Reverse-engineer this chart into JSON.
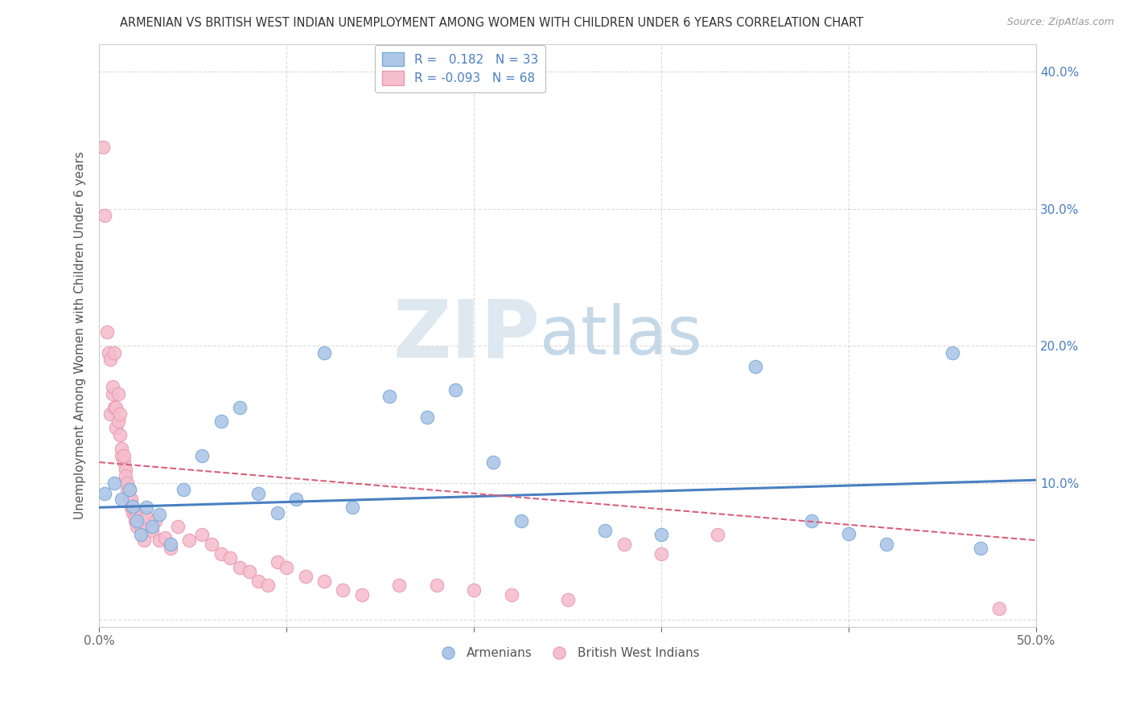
{
  "title": "ARMENIAN VS BRITISH WEST INDIAN UNEMPLOYMENT AMONG WOMEN WITH CHILDREN UNDER 6 YEARS CORRELATION CHART",
  "source": "Source: ZipAtlas.com",
  "ylabel": "Unemployment Among Women with Children Under 6 years",
  "xlim": [
    0.0,
    0.5
  ],
  "ylim": [
    -0.005,
    0.42
  ],
  "armenian_R": 0.182,
  "armenian_N": 33,
  "bwi_R": -0.093,
  "bwi_N": 68,
  "armenian_color": "#adc6e8",
  "armenian_edge": "#7aaad4",
  "bwi_color": "#f5bece",
  "bwi_edge": "#e899b0",
  "trend_armenian_color": "#4a7fc1",
  "trend_bwi_color": "#d9607a",
  "background_color": "#ffffff",
  "grid_color": "#cccccc",
  "legend_armenians": "Armenians",
  "legend_bwi": "British West Indians",
  "arm_x": [
    0.003,
    0.008,
    0.012,
    0.016,
    0.018,
    0.02,
    0.022,
    0.025,
    0.028,
    0.032,
    0.038,
    0.045,
    0.055,
    0.065,
    0.075,
    0.085,
    0.095,
    0.105,
    0.12,
    0.135,
    0.155,
    0.175,
    0.19,
    0.21,
    0.225,
    0.27,
    0.3,
    0.35,
    0.38,
    0.4,
    0.42,
    0.455,
    0.47
  ],
  "arm_y": [
    0.092,
    0.1,
    0.088,
    0.095,
    0.083,
    0.072,
    0.062,
    0.082,
    0.068,
    0.077,
    0.055,
    0.095,
    0.12,
    0.145,
    0.155,
    0.092,
    0.078,
    0.088,
    0.195,
    0.082,
    0.163,
    0.148,
    0.168,
    0.115,
    0.072,
    0.065,
    0.062,
    0.185,
    0.072,
    0.063,
    0.055,
    0.195,
    0.052
  ],
  "bwi_x": [
    0.002,
    0.003,
    0.004,
    0.005,
    0.006,
    0.006,
    0.007,
    0.007,
    0.008,
    0.008,
    0.009,
    0.009,
    0.01,
    0.01,
    0.011,
    0.011,
    0.012,
    0.012,
    0.013,
    0.013,
    0.014,
    0.014,
    0.015,
    0.015,
    0.016,
    0.016,
    0.017,
    0.017,
    0.018,
    0.018,
    0.019,
    0.019,
    0.02,
    0.02,
    0.022,
    0.022,
    0.024,
    0.025,
    0.028,
    0.03,
    0.032,
    0.035,
    0.038,
    0.042,
    0.048,
    0.055,
    0.06,
    0.065,
    0.07,
    0.075,
    0.08,
    0.085,
    0.09,
    0.095,
    0.1,
    0.11,
    0.12,
    0.13,
    0.14,
    0.16,
    0.18,
    0.2,
    0.22,
    0.25,
    0.28,
    0.3,
    0.33,
    0.48
  ],
  "bwi_y": [
    0.345,
    0.295,
    0.21,
    0.195,
    0.15,
    0.19,
    0.165,
    0.17,
    0.155,
    0.195,
    0.14,
    0.155,
    0.145,
    0.165,
    0.135,
    0.15,
    0.12,
    0.125,
    0.115,
    0.12,
    0.11,
    0.105,
    0.095,
    0.1,
    0.088,
    0.095,
    0.082,
    0.088,
    0.078,
    0.082,
    0.072,
    0.076,
    0.068,
    0.078,
    0.075,
    0.068,
    0.058,
    0.075,
    0.065,
    0.072,
    0.058,
    0.06,
    0.052,
    0.068,
    0.058,
    0.062,
    0.055,
    0.048,
    0.045,
    0.038,
    0.035,
    0.028,
    0.025,
    0.042,
    0.038,
    0.032,
    0.028,
    0.022,
    0.018,
    0.025,
    0.025,
    0.022,
    0.018,
    0.015,
    0.055,
    0.048,
    0.062,
    0.008
  ],
  "arm_trend_x0": 0.0,
  "arm_trend_y0": 0.082,
  "arm_trend_x1": 0.5,
  "arm_trend_y1": 0.102,
  "bwi_trend_x0": 0.0,
  "bwi_trend_y0": 0.115,
  "bwi_trend_x1": 0.5,
  "bwi_trend_y1": 0.058
}
